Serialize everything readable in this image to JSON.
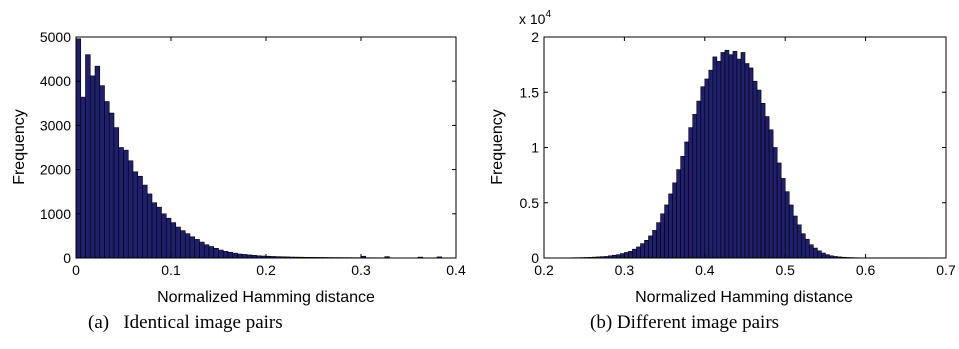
{
  "colors": {
    "bar_fill": "#1f1f6e",
    "bar_edge": "#000000",
    "axes": "#000000",
    "background": "#ffffff"
  },
  "captions": {
    "a": "(a)   Identical image pairs",
    "b": "(b) Different image pairs"
  },
  "chart_data": [
    {
      "type": "bar",
      "subtype": "histogram",
      "title": "",
      "xlabel": "Normalized Hamming distance",
      "ylabel": "Frequency",
      "xlim": [
        0,
        0.4
      ],
      "ylim": [
        0,
        5000
      ],
      "xticks": [
        "0",
        "0.1",
        "0.2",
        "0.3",
        "0.4"
      ],
      "yticks": [
        "0",
        "1000",
        "2000",
        "3000",
        "4000",
        "5000"
      ],
      "exponent_label": "",
      "grid": false,
      "bin_width": 0.005,
      "bin_start": 0.0,
      "values": [
        4960,
        3640,
        4600,
        4120,
        4340,
        3900,
        3540,
        3280,
        2950,
        2500,
        2440,
        2200,
        1950,
        1850,
        1650,
        1450,
        1250,
        1150,
        1000,
        900,
        800,
        700,
        620,
        550,
        480,
        420,
        360,
        300,
        260,
        220,
        180,
        150,
        130,
        110,
        90,
        80,
        70,
        60,
        50,
        45,
        40,
        35,
        30,
        28,
        25,
        22,
        20,
        18,
        16,
        15,
        14,
        13,
        12,
        11,
        10,
        10,
        9,
        9,
        8,
        8,
        40,
        7,
        6,
        6,
        5,
        30,
        5,
        4,
        4,
        4,
        4,
        3,
        20,
        3,
        3,
        3,
        25,
        3,
        2,
        2
      ]
    },
    {
      "type": "bar",
      "subtype": "histogram",
      "title": "",
      "xlabel": "Normalized Hamming distance",
      "ylabel": "Frequency",
      "xlim": [
        0.2,
        0.7
      ],
      "ylim": [
        0,
        2
      ],
      "xticks": [
        "0.2",
        "0.3",
        "0.4",
        "0.5",
        "0.6",
        "0.7"
      ],
      "yticks": [
        "0",
        "0.5",
        "1",
        "1.5",
        "2"
      ],
      "exponent_label": "x 10",
      "exponent_power": "4",
      "grid": false,
      "bin_width": 0.005,
      "bin_start": 0.225,
      "values": [
        0.002,
        0.002,
        0.003,
        0.003,
        0.004,
        0.005,
        0.006,
        0.008,
        0.01,
        0.012,
        0.014,
        0.02,
        0.025,
        0.03,
        0.04,
        0.05,
        0.06,
        0.08,
        0.1,
        0.13,
        0.16,
        0.2,
        0.25,
        0.32,
        0.4,
        0.48,
        0.58,
        0.68,
        0.8,
        0.92,
        1.05,
        1.18,
        1.3,
        1.42,
        1.55,
        1.62,
        1.7,
        1.82,
        1.78,
        1.86,
        1.88,
        1.84,
        1.87,
        1.8,
        1.86,
        1.76,
        1.72,
        1.6,
        1.52,
        1.4,
        1.28,
        1.16,
        1.0,
        0.86,
        0.72,
        0.6,
        0.48,
        0.38,
        0.3,
        0.22,
        0.17,
        0.12,
        0.09,
        0.065,
        0.045,
        0.03,
        0.02,
        0.014,
        0.01,
        0.007,
        0.005,
        0.004,
        0.003,
        0.002,
        0.002,
        0.002,
        0.002,
        0.002,
        0.002,
        0.002,
        0.002,
        0.002,
        0.002,
        0.002,
        0.002,
        0.002,
        0.002,
        0.002,
        0.002,
        0.002
      ]
    }
  ]
}
